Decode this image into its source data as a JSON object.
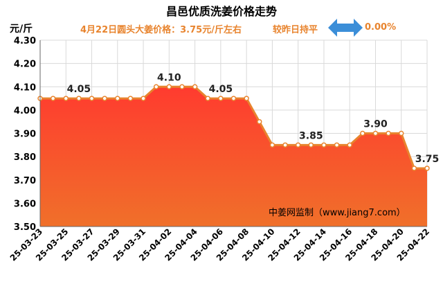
{
  "title": "昌邑优质洗姜价格走势",
  "unit_label": "元/斤",
  "subtitle": "4月22日圆头大姜价格：3.75元/斤左右",
  "change_label": "较昨日持平",
  "change_percent": "0.00%",
  "watermark": "中姜网监制（www.jiang7.com）",
  "colors": {
    "line": "#e8842e",
    "fill_top": "#ff3b2f",
    "fill_bottom": "#f0702a",
    "arrow": "#3b8ed8",
    "accent_text": "#e8842e"
  },
  "chart_data": {
    "type": "area",
    "x": [
      "25-03-23",
      "25-03-24",
      "25-03-25",
      "25-03-26",
      "25-03-27",
      "25-03-28",
      "25-03-29",
      "25-03-30",
      "25-03-31",
      "25-04-01",
      "25-04-02",
      "25-04-03",
      "25-04-04",
      "25-04-05",
      "25-04-06",
      "25-04-07",
      "25-04-08",
      "25-04-09",
      "25-04-10",
      "25-04-11",
      "25-04-12",
      "25-04-13",
      "25-04-14",
      "25-04-15",
      "25-04-16",
      "25-04-17",
      "25-04-18",
      "25-04-19",
      "25-04-20",
      "25-04-21",
      "25-04-22"
    ],
    "x_tick_labels": [
      "25-03-23",
      "25-03-25",
      "25-03-27",
      "25-03-29",
      "25-03-31",
      "25-04-02",
      "25-04-04",
      "25-04-06",
      "25-04-08",
      "25-04-10",
      "25-04-12",
      "25-04-14",
      "25-04-16",
      "25-04-18",
      "25-04-20",
      "25-04-22"
    ],
    "values": [
      4.05,
      4.05,
      4.05,
      4.05,
      4.05,
      4.05,
      4.05,
      4.05,
      4.05,
      4.1,
      4.1,
      4.1,
      4.1,
      4.05,
      4.05,
      4.05,
      4.05,
      3.95,
      3.85,
      3.85,
      3.85,
      3.85,
      3.85,
      3.85,
      3.85,
      3.9,
      3.9,
      3.9,
      3.9,
      3.75,
      3.75
    ],
    "y_ticks": [
      "3.50",
      "3.60",
      "3.70",
      "3.80",
      "3.90",
      "4.00",
      "4.10",
      "4.20",
      "4.30"
    ],
    "ylim": [
      3.5,
      4.3
    ],
    "data_labels": [
      {
        "index": 3,
        "text": "4.05"
      },
      {
        "index": 10,
        "text": "4.10"
      },
      {
        "index": 14,
        "text": "4.05"
      },
      {
        "index": 21,
        "text": "3.85"
      },
      {
        "index": 26,
        "text": "3.90"
      },
      {
        "index": 30,
        "text": "3.75"
      }
    ],
    "grid": true,
    "legend": "none"
  }
}
